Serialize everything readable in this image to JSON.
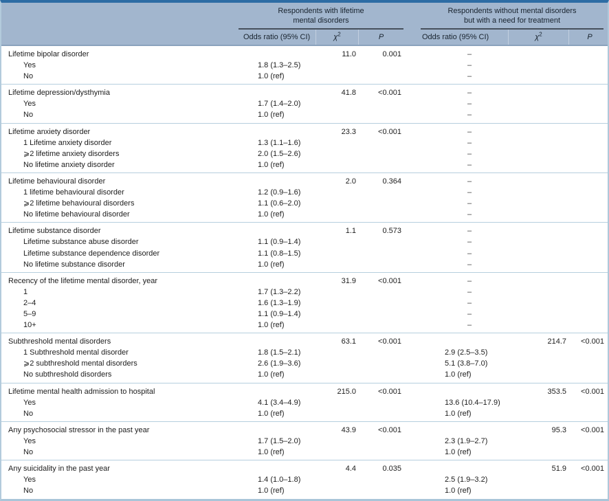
{
  "header": {
    "groups": [
      {
        "line1": "Respondents with lifetime",
        "line2": "mental disorders"
      },
      {
        "line1": "Respondents without mental disorders",
        "line2": "but with a need for treatment"
      }
    ],
    "sub": {
      "or": "Odds ratio (95% CI)",
      "chi": "χ",
      "chi_sup": "2",
      "p": "P"
    }
  },
  "colors": {
    "header_bg": "#a2b6ce",
    "top_border": "#2d6ca4",
    "frame_border": "#a9c5d9",
    "row_separator": "#b5cede",
    "group_rule": "#46505c"
  },
  "table": {
    "sections": [
      {
        "label": "Lifetime bipolar disorder",
        "chi1": "11.0",
        "p1": "0.001",
        "or2_head": "–",
        "chi2": "",
        "p2": "",
        "rows": [
          {
            "label": "Yes",
            "or1": "1.8 (1.3–2.5)",
            "or2": "–"
          },
          {
            "label": "No",
            "or1": "1.0 (ref)",
            "or2": "–"
          }
        ]
      },
      {
        "label": "Lifetime depression/dysthymia",
        "chi1": "41.8",
        "p1": "<0.001",
        "or2_head": "–",
        "chi2": "",
        "p2": "",
        "rows": [
          {
            "label": "Yes",
            "or1": "1.7 (1.4–2.0)",
            "or2": "–"
          },
          {
            "label": "No",
            "or1": "1.0 (ref)",
            "or2": "–"
          }
        ]
      },
      {
        "label": "Lifetime anxiety disorder",
        "chi1": "23.3",
        "p1": "<0.001",
        "or2_head": "–",
        "chi2": "",
        "p2": "",
        "rows": [
          {
            "label": "1 Lifetime anxiety disorder",
            "or1": "1.3 (1.1–1.6)",
            "or2": "–"
          },
          {
            "label": "⩾2 lifetime anxiety disorders",
            "or1": "2.0 (1.5–2.6)",
            "or2": "–"
          },
          {
            "label": "No lifetime anxiety disorder",
            "or1": "1.0 (ref)",
            "or2": "–"
          }
        ]
      },
      {
        "label": "Lifetime behavioural disorder",
        "chi1": "2.0",
        "p1": "0.364",
        "or2_head": "–",
        "chi2": "",
        "p2": "",
        "rows": [
          {
            "label": "1 lifetime behavioural disorder",
            "or1": "1.2 (0.9–1.6)",
            "or2": "–"
          },
          {
            "label": "⩾2 lifetime behavioural disorders",
            "or1": "1.1 (0.6–2.0)",
            "or2": "–"
          },
          {
            "label": "No lifetime behavioural disorder",
            "or1": "1.0 (ref)",
            "or2": "–"
          }
        ]
      },
      {
        "label": "Lifetime substance disorder",
        "chi1": "1.1",
        "p1": "0.573",
        "or2_head": "–",
        "chi2": "",
        "p2": "",
        "rows": [
          {
            "label": "Lifetime substance abuse disorder",
            "or1": "1.1 (0.9–1.4)",
            "or2": "–"
          },
          {
            "label": "Lifetime substance dependence disorder",
            "or1": "1.1 (0.8–1.5)",
            "or2": "–"
          },
          {
            "label": "No lifetime substance disorder",
            "or1": "1.0 (ref)",
            "or2": "–"
          }
        ]
      },
      {
        "label": "Recency of the lifetime mental disorder, year",
        "chi1": "31.9",
        "p1": "<0.001",
        "or2_head": "–",
        "chi2": "",
        "p2": "",
        "rows": [
          {
            "label": "1",
            "or1": "1.7 (1.3–2.2)",
            "or2": "–"
          },
          {
            "label": "2–4",
            "or1": "1.6 (1.3–1.9)",
            "or2": "–"
          },
          {
            "label": "5–9",
            "or1": "1.1 (0.9–1.4)",
            "or2": "–"
          },
          {
            "label": "10+",
            "or1": "1.0 (ref)",
            "or2": "–"
          }
        ]
      },
      {
        "label": "Subthreshold mental disorders",
        "chi1": "63.1",
        "p1": "<0.001",
        "or2_head": "",
        "chi2": "214.7",
        "p2": "<0.001",
        "rows": [
          {
            "label": "1 Subthreshold mental disorder",
            "or1": "1.8 (1.5–2.1)",
            "or2": "2.9 (2.5–3.5)"
          },
          {
            "label": "⩾2 subthreshold mental disorders",
            "or1": "2.6 (1.9–3.6)",
            "or2": "5.1 (3.8–7.0)"
          },
          {
            "label": "No subthreshold disorders",
            "or1": "1.0 (ref)",
            "or2": "1.0 (ref)"
          }
        ]
      },
      {
        "label": "Lifetime mental health admission to hospital",
        "chi1": "215.0",
        "p1": "<0.001",
        "or2_head": "",
        "chi2": "353.5",
        "p2": "<0.001",
        "rows": [
          {
            "label": "Yes",
            "or1": "4.1 (3.4–4.9)",
            "or2": "13.6 (10.4–17.9)"
          },
          {
            "label": "No",
            "or1": "1.0 (ref)",
            "or2": "1.0 (ref)"
          }
        ]
      },
      {
        "label": "Any psychosocial stressor in the past year",
        "chi1": "43.9",
        "p1": "<0.001",
        "or2_head": "",
        "chi2": "95.3",
        "p2": "<0.001",
        "rows": [
          {
            "label": "Yes",
            "or1": "1.7 (1.5–2.0)",
            "or2": "2.3 (1.9–2.7)"
          },
          {
            "label": "No",
            "or1": "1.0 (ref)",
            "or2": "1.0 (ref)"
          }
        ]
      },
      {
        "label": "Any suicidality in the past year",
        "chi1": "4.4",
        "p1": "0.035",
        "or2_head": "",
        "chi2": "51.9",
        "p2": "<0.001",
        "rows": [
          {
            "label": "Yes",
            "or1": "1.4 (1.0–1.8)",
            "or2": "2.5 (1.9–3.2)"
          },
          {
            "label": "No",
            "or1": "1.0 (ref)",
            "or2": "1.0 (ref)"
          }
        ]
      }
    ]
  }
}
